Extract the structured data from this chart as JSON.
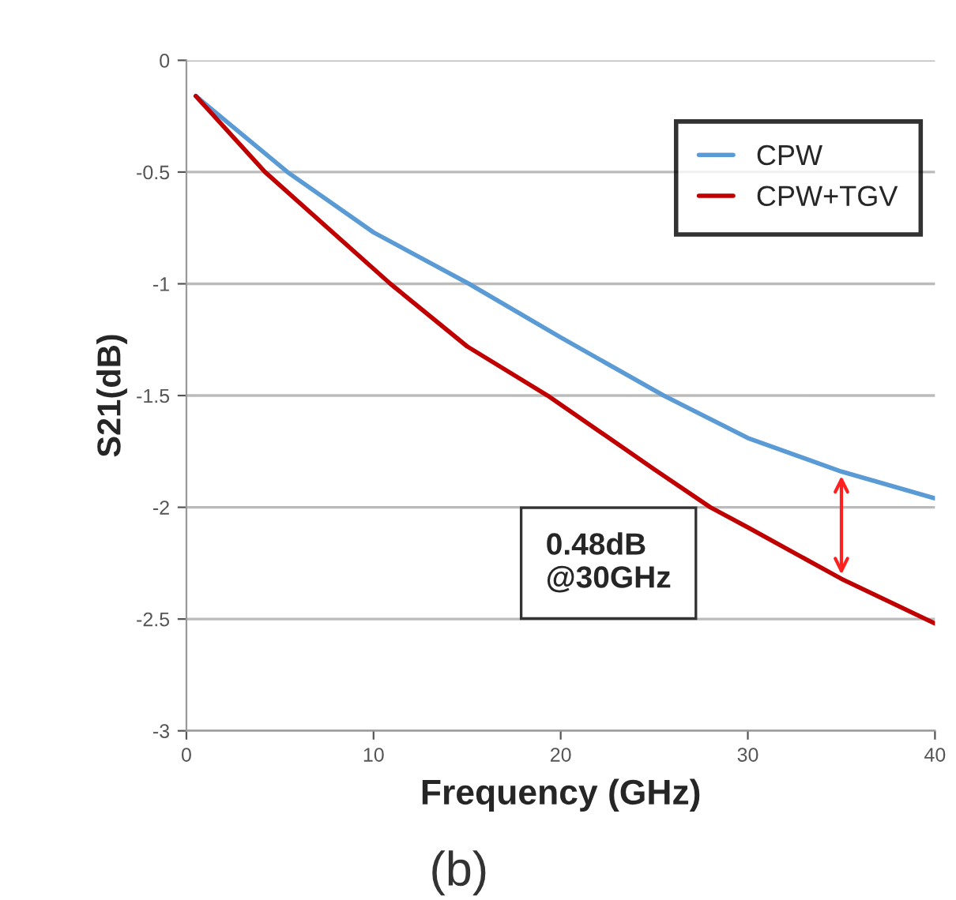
{
  "chart_data": {
    "type": "line",
    "xlabel": "Frequency (GHz)",
    "ylabel": "S21(dB)",
    "xlim": [
      0,
      40
    ],
    "xticks": [
      0,
      10,
      20,
      30,
      40
    ],
    "ylim": [
      -3,
      0
    ],
    "yticks": [
      -3,
      -2.5,
      -2,
      -1.5,
      -1,
      -0.5,
      0
    ],
    "grid": "y",
    "legend": "top right",
    "series": [
      {
        "name": "CPW",
        "color": "#5b9bd5",
        "x": [
          0.5,
          5.4,
          10,
          15.1,
          20,
          25.5,
          30,
          35,
          40
        ],
        "values": [
          -0.16,
          -0.5,
          -0.77,
          -1,
          -1.24,
          -1.5,
          -1.69,
          -1.84,
          -1.96
        ]
      },
      {
        "name": "CPW+TGV",
        "color": "#c00000",
        "x": [
          0.5,
          4.2,
          10.9,
          15,
          19.3,
          25,
          28,
          30,
          35,
          40
        ],
        "values": [
          -0.16,
          -0.5,
          -1,
          -1.28,
          -1.5,
          -1.83,
          -2,
          -2.09,
          -2.32,
          -2.52
        ]
      }
    ],
    "annotations": [
      "0.48dB\n@30GHz",
      "(b)"
    ]
  }
}
